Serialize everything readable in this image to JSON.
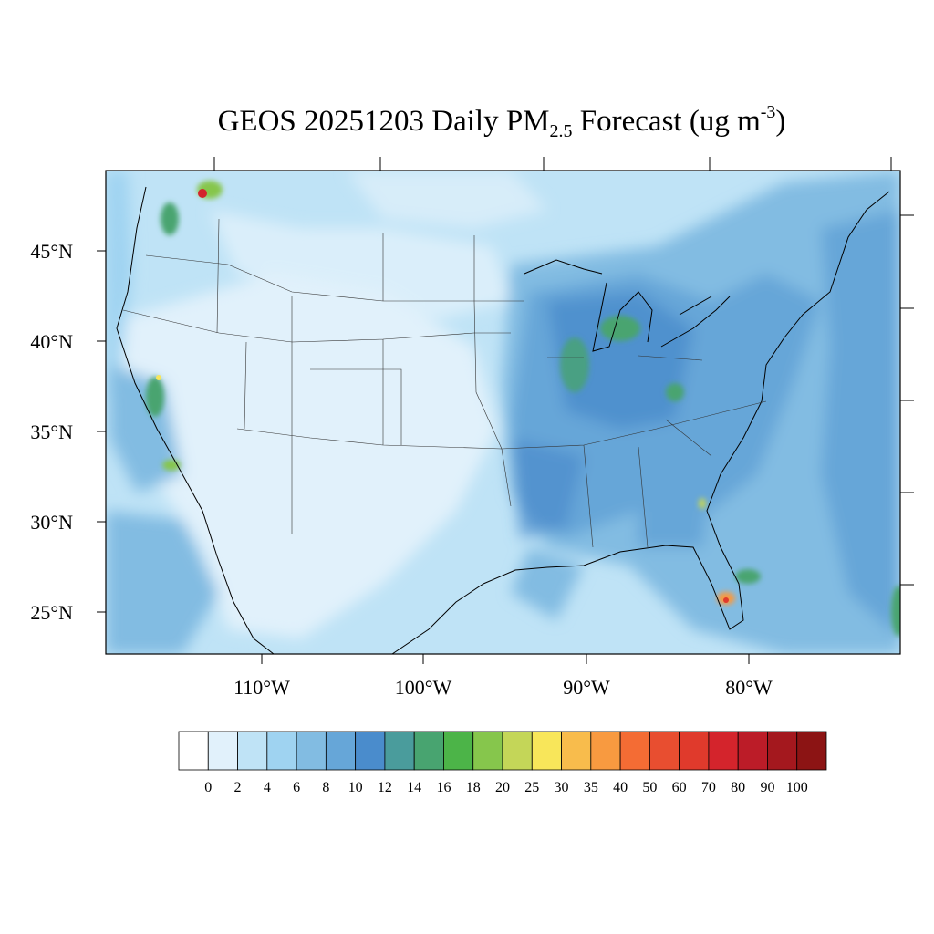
{
  "title": {
    "prefix": "GEOS 20251203 Daily PM",
    "subscript": "2.5",
    "middle": " Forecast (ug m",
    "superscript": "-3",
    "suffix": ")"
  },
  "map": {
    "lat_labels": [
      "45°N",
      "40°N",
      "35°N",
      "30°N",
      "25°N"
    ],
    "lon_labels": [
      "110°W",
      "100°W",
      "90°W",
      "80°W"
    ],
    "extent": {
      "lon_min": -119.0,
      "lon_max": -70.0,
      "lat_min": 23.0,
      "lat_max": 50.0
    }
  },
  "colorbar": {
    "labels": [
      "0",
      "2",
      "4",
      "6",
      "8",
      "10",
      "12",
      "14",
      "16",
      "18",
      "20",
      "25",
      "30",
      "35",
      "40",
      "50",
      "60",
      "70",
      "80",
      "90",
      "100"
    ],
    "colors": [
      "#ffffff",
      "#e1f1fb",
      "#bfe3f6",
      "#9fd3f1",
      "#82bce2",
      "#66a6d8",
      "#4a8ccc",
      "#4a9c9c",
      "#48a470",
      "#4cb448",
      "#86c64c",
      "#c4d658",
      "#f8e65a",
      "#f8bc4c",
      "#f89a40",
      "#f46c34",
      "#e84e30",
      "#e03a2c",
      "#d4242c",
      "#bc1c28",
      "#a4181e",
      "#8c1414"
    ]
  }
}
